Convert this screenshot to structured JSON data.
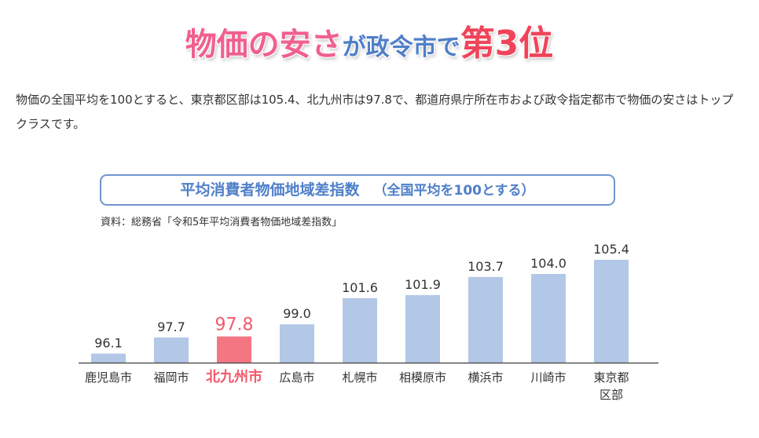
{
  "headline": {
    "part1": "物価の安さ",
    "part2": "が政令市で",
    "part3": "第3位"
  },
  "intro_text": "物価の全国平均を100とすると、東京都区部は105.4、北九州市は97.8で、都道府県庁所在市および政令指定都市で物価の安さはトップクラスです。",
  "colors": {
    "bar": "#b3c8e6",
    "highlight": "#f57683",
    "highlight_text": "#f25a6a",
    "axis": "#555555"
  },
  "chart_data": {
    "type": "bar",
    "title": "平均消費者物価地域差指数",
    "subtitle": "（全国平均を100とする）",
    "source": "資料：総務省「令和5年平均消費者物価地域差指数」",
    "categories": [
      "鹿児島市",
      "福岡市",
      "北九州市",
      "広島市",
      "札幌市",
      "相模原市",
      "横浜市",
      "川崎市",
      "東京都区部"
    ],
    "category_lines": [
      [
        "鹿児島市"
      ],
      [
        "福岡市"
      ],
      [
        "北九州市"
      ],
      [
        "広島市"
      ],
      [
        "札幌市"
      ],
      [
        "相模原市"
      ],
      [
        "横浜市"
      ],
      [
        "川崎市"
      ],
      [
        "東京都",
        "区部"
      ]
    ],
    "values": [
      96.1,
      97.7,
      97.8,
      99.0,
      101.6,
      101.9,
      103.7,
      104.0,
      105.4
    ],
    "value_labels": [
      "96.1",
      "97.7",
      "97.8",
      "99.0",
      "101.6",
      "101.9",
      "103.7",
      "104.0",
      "105.4"
    ],
    "highlight_category": "北九州市",
    "ylim": [
      95.2,
      105.4
    ],
    "grid": false,
    "legend": "none"
  }
}
